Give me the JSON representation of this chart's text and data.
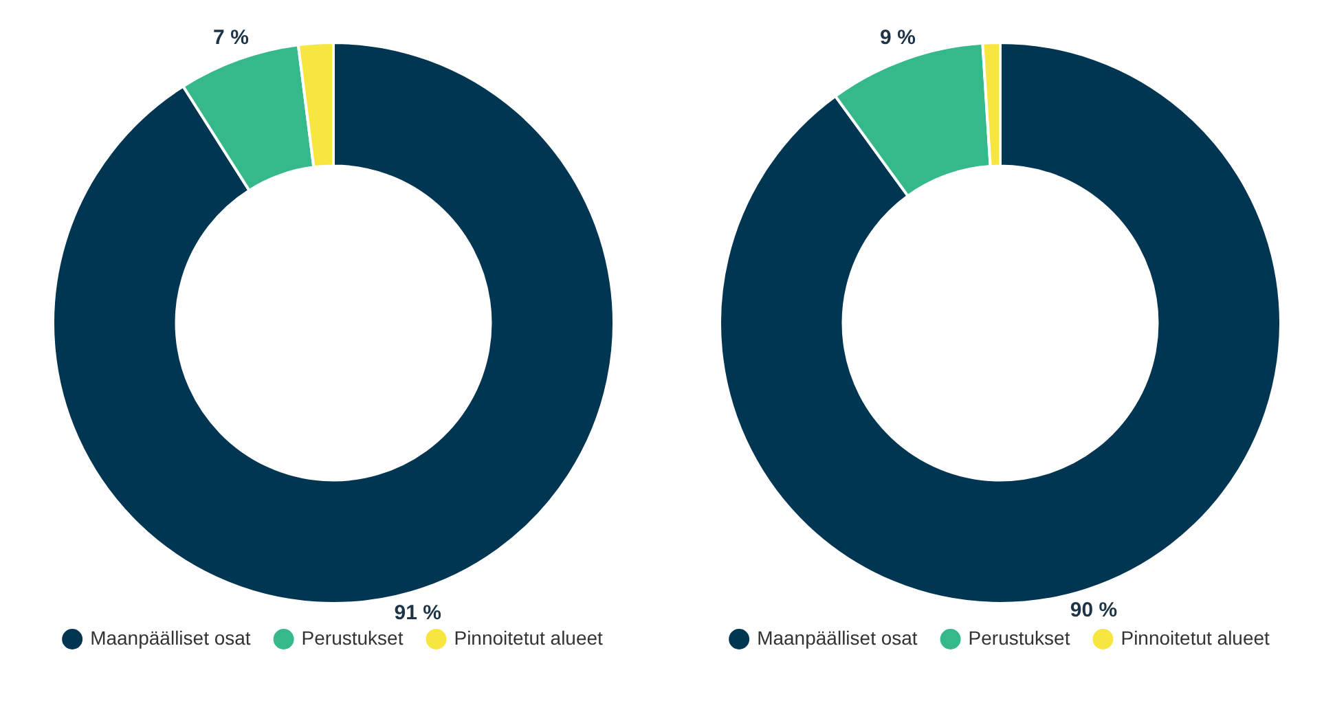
{
  "chart_data": [
    {
      "type": "donut",
      "categories": [
        "Maanpäälliset osat",
        "Perustukset",
        "Pinnoitetut alueet"
      ],
      "values": [
        91,
        7,
        2
      ],
      "colors": [
        "#003652",
        "#36b98a",
        "#f7e63f"
      ],
      "value_labels": [
        "91 %",
        "7 %",
        null
      ],
      "legend": "bottom"
    },
    {
      "type": "donut",
      "categories": [
        "Maanpäälliset osat",
        "Perustukset",
        "Pinnoitetut alueet"
      ],
      "values": [
        90,
        9,
        1
      ],
      "colors": [
        "#003652",
        "#36b98a",
        "#f7e63f"
      ],
      "value_labels": [
        "90 %",
        "9 %",
        null
      ],
      "legend": "bottom"
    }
  ]
}
